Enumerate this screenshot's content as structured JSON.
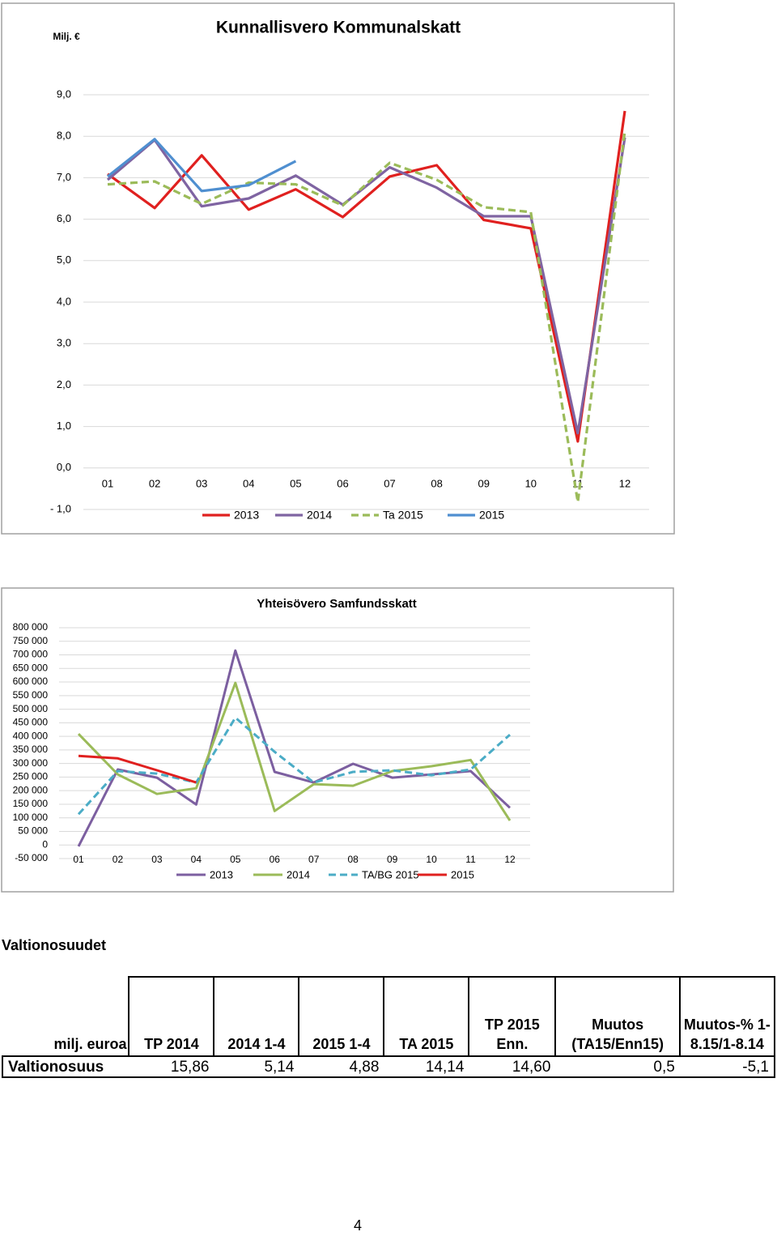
{
  "chart_data": [
    {
      "type": "line",
      "title": "Kunnallisvero Kommunalskatt",
      "unit": "Milj. €",
      "categories": [
        "01",
        "02",
        "03",
        "04",
        "05",
        "06",
        "07",
        "08",
        "09",
        "10",
        "11",
        "12"
      ],
      "ylim": [
        -1,
        9
      ],
      "yticks": [
        {
          "value": -1,
          "label": "- 1,0"
        },
        {
          "value": 0,
          "label": "0,0"
        },
        {
          "value": 1,
          "label": "1,0"
        },
        {
          "value": 2,
          "label": "2,0"
        },
        {
          "value": 3,
          "label": "3,0"
        },
        {
          "value": 4,
          "label": "4,0"
        },
        {
          "value": 5,
          "label": "5,0"
        },
        {
          "value": 6,
          "label": "6,0"
        },
        {
          "value": 7,
          "label": "7,0"
        },
        {
          "value": 8,
          "label": "8,0"
        },
        {
          "value": 9,
          "label": "9,0"
        }
      ],
      "grid": true,
      "legend": "bottom",
      "series": [
        {
          "name": "2013",
          "color": "#e0201f",
          "dashed": false,
          "values": [
            7.09,
            6.27,
            7.54,
            6.23,
            6.72,
            6.05,
            7.03,
            7.3,
            5.98,
            5.78,
            0.64,
            8.61
          ]
        },
        {
          "name": "2014",
          "color": "#7f64a2",
          "dashed": false,
          "values": [
            6.95,
            7.91,
            6.31,
            6.5,
            7.05,
            6.35,
            7.25,
            6.76,
            6.07,
            6.07,
            0.84,
            7.97
          ]
        },
        {
          "name": "Ta 2015",
          "color": "#9bbb59",
          "dashed": true,
          "values": [
            6.84,
            6.91,
            6.37,
            6.88,
            6.84,
            6.33,
            7.36,
            6.95,
            6.29,
            6.17,
            -0.82,
            8.13
          ]
        },
        {
          "name": "2015",
          "color": "#4f8fd0",
          "dashed": false,
          "values": [
            7.03,
            7.93,
            6.68,
            6.82,
            7.4,
            null,
            null,
            null,
            null,
            null,
            null,
            null
          ]
        }
      ]
    },
    {
      "type": "line",
      "title": "Yhteisövero Samfundsskatt",
      "categories": [
        "01",
        "02",
        "03",
        "04",
        "05",
        "06",
        "07",
        "08",
        "09",
        "10",
        "11",
        "12"
      ],
      "ylim": [
        -50000,
        800000
      ],
      "yticks": [
        {
          "value": -50000,
          "label": "-50 000"
        },
        0,
        {
          "value": 50000,
          "label": "50 000"
        },
        {
          "value": 100000,
          "label": "100 000"
        },
        {
          "value": 150000,
          "label": "150 000"
        },
        {
          "value": 200000,
          "label": "200 000"
        },
        {
          "value": 250000,
          "label": "250 000"
        },
        {
          "value": 300000,
          "label": "300 000"
        },
        {
          "value": 350000,
          "label": "350 000"
        },
        {
          "value": 400000,
          "label": "400 000"
        },
        {
          "value": 450000,
          "label": "450 000"
        },
        {
          "value": 500000,
          "label": "500 000"
        },
        {
          "value": 550000,
          "label": "550 000"
        },
        {
          "value": 600000,
          "label": "600 000"
        },
        {
          "value": 650000,
          "label": "650 000"
        },
        {
          "value": 700000,
          "label": "700 000"
        },
        {
          "value": 750000,
          "label": "750 000"
        },
        {
          "value": 800000,
          "label": "800 000"
        }
      ],
      "grid": true,
      "legend": "bottom",
      "series": [
        {
          "name": "2013",
          "color": "#7c5fa0",
          "dashed": false,
          "values": [
            -5000,
            278000,
            248000,
            149000,
            716000,
            269000,
            230000,
            299000,
            248000,
            260000,
            272000,
            137000
          ]
        },
        {
          "name": "2014",
          "color": "#9bbb59",
          "dashed": false,
          "values": [
            409000,
            260000,
            188000,
            209000,
            597000,
            125000,
            224000,
            218000,
            272000,
            290000,
            313000,
            90000
          ]
        },
        {
          "name": "TA/BG 2015",
          "color": "#4bacc6",
          "dashed": true,
          "values": [
            113000,
            272000,
            263000,
            230000,
            469000,
            343000,
            230000,
            269000,
            275000,
            257000,
            278000,
            406000
          ]
        },
        {
          "name": "2015",
          "color": "#e0201f",
          "dashed": false,
          "values": [
            328000,
            319000,
            275000,
            230000,
            null,
            null,
            null,
            null,
            null,
            null,
            null,
            null
          ]
        }
      ]
    }
  ],
  "section_title": "Valtionosuudet",
  "table": {
    "header": [
      "milj. euroa",
      "TP 2014",
      "2014 1-4",
      "2015 1-4",
      "TA 2015",
      "TP 2015 Enn.",
      "Muutos (TA15/Enn15)",
      "Muutos-% 1-8.15/1-8.14"
    ],
    "rows": [
      [
        "Valtionosuus",
        "15,86",
        "5,14",
        "4,88",
        "14,14",
        "14,60",
        "0,5",
        "-5,1"
      ]
    ]
  },
  "page_number": "4"
}
